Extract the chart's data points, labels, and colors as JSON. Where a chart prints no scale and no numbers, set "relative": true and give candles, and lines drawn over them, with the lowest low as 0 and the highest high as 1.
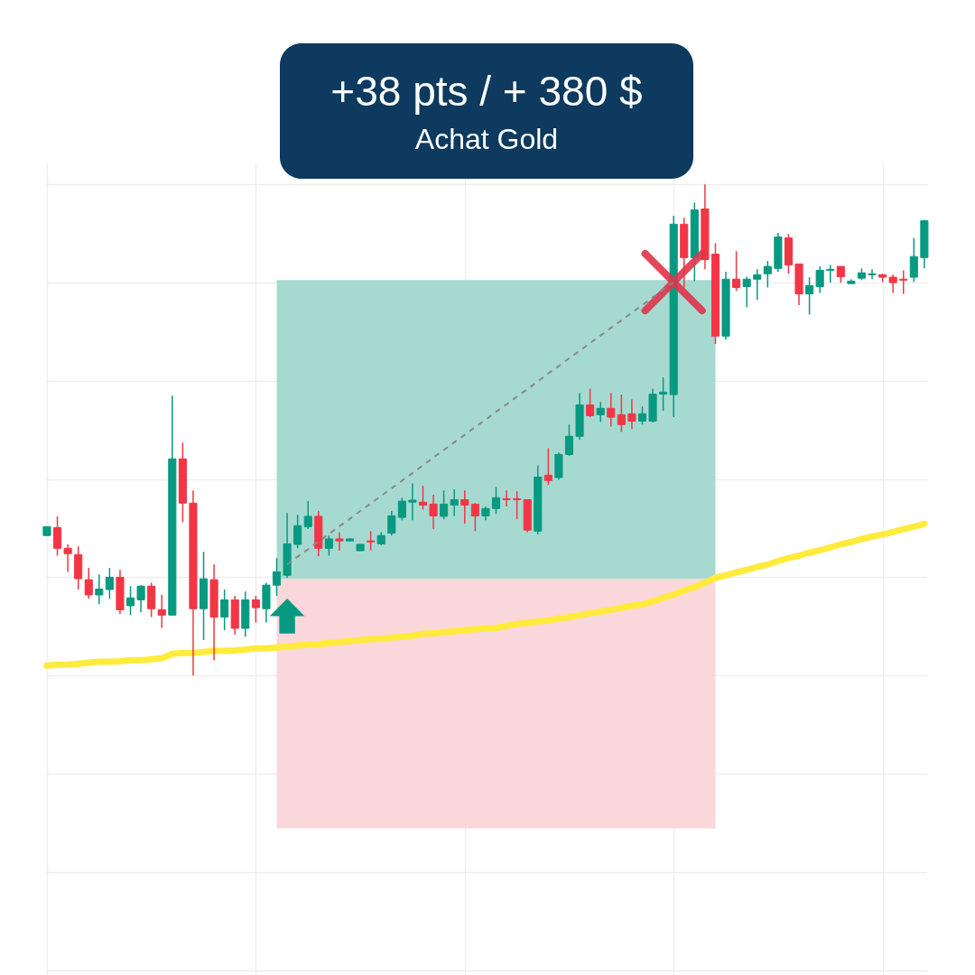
{
  "chart_data": {
    "type": "candlestick",
    "title": "+38 pts / + 380 $",
    "subtitle": "Achat Gold",
    "relative": true,
    "grid": true,
    "categories": [
      null,
      null,
      null,
      null,
      null,
      null,
      null,
      null,
      null,
      null,
      null,
      null,
      null,
      null,
      null,
      null,
      null,
      null,
      null,
      null,
      null,
      null,
      null,
      null,
      null,
      null,
      null,
      null,
      null,
      null,
      null,
      null,
      null,
      null,
      null,
      null,
      null,
      null,
      null,
      null,
      null,
      null,
      null,
      null,
      null,
      null,
      null,
      null,
      null,
      null,
      null,
      null,
      null,
      null,
      null,
      null,
      null,
      null,
      null,
      null,
      null,
      null,
      null,
      null,
      null,
      null,
      null,
      null,
      null,
      null,
      null,
      null,
      null,
      null,
      null,
      null,
      null,
      null,
      null,
      null,
      null,
      null,
      null,
      null,
      null
    ],
    "colors": [
      "#089981",
      "#f23645",
      "#f23645",
      "#f23645",
      "#f23645",
      "#089981",
      "#089981",
      "#f23645",
      "#089981",
      "#089981",
      "#f23645",
      "#f23645",
      "#089981",
      "#f23645",
      "#f23645",
      "#089981",
      "#f23645",
      "#089981",
      "#f23645",
      "#089981",
      "#f23645",
      "#089981",
      "#089981",
      "#089981",
      "#089981",
      "#089981",
      "#f23645",
      "#089981",
      "#f23645",
      "#089981",
      "#089981",
      "#f23645",
      "#089981",
      "#089981",
      "#089981",
      "#089981",
      "#f23645",
      "#f23645",
      "#089981",
      "#089981",
      "#f23645",
      "#f23645",
      "#089981",
      "#089981",
      "#f23645",
      "#f23645",
      "#f23645",
      "#089981",
      "#f23645",
      "#089981",
      "#089981",
      "#089981",
      "#f23645",
      "#089981",
      "#f23645",
      "#f23645",
      "#f23645",
      "#089981",
      "#089981",
      "#089981",
      "#089981",
      "#f23645",
      "#089981",
      "#f23645",
      "#f23645",
      "#089981",
      "#f23645",
      "#089981",
      "#089981",
      "#089981",
      "#089981",
      "#f23645",
      "#f23645",
      "#089981",
      "#089981",
      "#089981",
      "#f23645",
      "#089981",
      "#089981",
      "#089981",
      "#f23645",
      "#f23645",
      "#f23645",
      "#089981",
      "#089981"
    ],
    "ohlc": [
      [
        0.285,
        0.303,
        0.285,
        0.303
      ],
      [
        0.301,
        0.324,
        0.244,
        0.259
      ],
      [
        0.259,
        0.267,
        0.211,
        0.248
      ],
      [
        0.246,
        0.263,
        0.175,
        0.197
      ],
      [
        0.195,
        0.219,
        0.156,
        0.164
      ],
      [
        0.164,
        0.206,
        0.145,
        0.176
      ],
      [
        0.175,
        0.219,
        0.156,
        0.2
      ],
      [
        0.2,
        0.215,
        0.125,
        0.134
      ],
      [
        0.142,
        0.182,
        0.123,
        0.158
      ],
      [
        0.154,
        0.184,
        0.129,
        0.182
      ],
      [
        0.182,
        0.189,
        0.119,
        0.136
      ],
      [
        0.134,
        0.164,
        0.097,
        0.123
      ],
      [
        0.123,
        0.57,
        0.123,
        0.441
      ],
      [
        0.441,
        0.474,
        0.312,
        0.351
      ],
      [
        0.351,
        0.377,
        0,
        0.136
      ],
      [
        0.136,
        0.252,
        0.072,
        0.197
      ],
      [
        0.195,
        0.226,
        0.031,
        0.119
      ],
      [
        0.119,
        0.175,
        0.092,
        0.154
      ],
      [
        0.154,
        0.162,
        0.083,
        0.096
      ],
      [
        0.096,
        0.171,
        0.079,
        0.154
      ],
      [
        0.154,
        0.162,
        0.108,
        0.138
      ],
      [
        0.136,
        0.189,
        0.108,
        0.184
      ],
      [
        0.184,
        0.239,
        0.162,
        0.211
      ],
      [
        0.204,
        0.331,
        0.199,
        0.268
      ],
      [
        0.267,
        0.327,
        0.259,
        0.305
      ],
      [
        0.303,
        0.355,
        0.298,
        0.324
      ],
      [
        0.324,
        0.335,
        0.243,
        0.259
      ],
      [
        0.259,
        0.285,
        0.244,
        0.278
      ],
      [
        0.278,
        0.292,
        0.254,
        0.274
      ],
      [
        0.274,
        0.279,
        0.274,
        0.278
      ],
      [
        0.254,
        0.267,
        0.254,
        0.267
      ],
      [
        0.274,
        0.294,
        0.255,
        0.272
      ],
      [
        0.268,
        0.292,
        0.265,
        0.285
      ],
      [
        0.29,
        0.335,
        0.285,
        0.325
      ],
      [
        0.322,
        0.362,
        0.316,
        0.355
      ],
      [
        0.353,
        0.391,
        0.316,
        0.357
      ],
      [
        0.353,
        0.386,
        0.338,
        0.347
      ],
      [
        0.349,
        0.368,
        0.298,
        0.325
      ],
      [
        0.324,
        0.377,
        0.318,
        0.349
      ],
      [
        0.347,
        0.379,
        0.325,
        0.358
      ],
      [
        0.358,
        0.377,
        0.309,
        0.347
      ],
      [
        0.349,
        0.351,
        0.294,
        0.325
      ],
      [
        0.325,
        0.344,
        0.316,
        0.34
      ],
      [
        0.34,
        0.384,
        0.329,
        0.362
      ],
      [
        0.36,
        0.377,
        0.344,
        0.358
      ],
      [
        0.36,
        0.375,
        0.318,
        0.358
      ],
      [
        0.358,
        0.358,
        0.292,
        0.296
      ],
      [
        0.294,
        0.428,
        0.287,
        0.404
      ],
      [
        0.408,
        0.463,
        0.388,
        0.397
      ],
      [
        0.403,
        0.454,
        0.399,
        0.45
      ],
      [
        0.45,
        0.511,
        0.447,
        0.487
      ],
      [
        0.487,
        0.575,
        0.48,
        0.551
      ],
      [
        0.551,
        0.584,
        0.526,
        0.529
      ],
      [
        0.531,
        0.557,
        0.516,
        0.544
      ],
      [
        0.544,
        0.575,
        0.507,
        0.526
      ],
      [
        0.531,
        0.572,
        0.496,
        0.511
      ],
      [
        0.533,
        0.562,
        0.502,
        0.518
      ],
      [
        0.518,
        0.548,
        0.511,
        0.533
      ],
      [
        0.518,
        0.584,
        0.515,
        0.573
      ],
      [
        0.573,
        0.607,
        0.539,
        0.577
      ],
      [
        0.572,
        0.936,
        0.526,
        0.919
      ],
      [
        0.919,
        0.932,
        0.79,
        0.851
      ],
      [
        0.851,
        0.963,
        0.803,
        0.948
      ],
      [
        0.95,
        1,
        0.827,
        0.847
      ],
      [
        0.858,
        0.88,
        0.675,
        0.691
      ],
      [
        0.691,
        0.822,
        0.684,
        0.807
      ],
      [
        0.807,
        0.864,
        0.783,
        0.79
      ],
      [
        0.792,
        0.812,
        0.75,
        0.807
      ],
      [
        0.807,
        0.827,
        0.765,
        0.816
      ],
      [
        0.818,
        0.844,
        0.79,
        0.833
      ],
      [
        0.829,
        0.901,
        0.822,
        0.893
      ],
      [
        0.891,
        0.899,
        0.818,
        0.836
      ],
      [
        0.838,
        0.838,
        0.754,
        0.777
      ],
      [
        0.777,
        0.811,
        0.735,
        0.794
      ],
      [
        0.792,
        0.833,
        0.779,
        0.825
      ],
      [
        0.825,
        0.836,
        0.8,
        0.827
      ],
      [
        0.833,
        0.833,
        0.8,
        0.812
      ],
      [
        0.798,
        0.807,
        0.798,
        0.803
      ],
      [
        0.809,
        0.829,
        0.805,
        0.82
      ],
      [
        0.816,
        0.827,
        0.807,
        0.818
      ],
      [
        0.816,
        0.818,
        0.801,
        0.811
      ],
      [
        0.811,
        0.816,
        0.779,
        0.8
      ],
      [
        0.807,
        0.825,
        0.777,
        0.805
      ],
      [
        0.811,
        0.891,
        0.801,
        0.853
      ],
      [
        0.851,
        0.928,
        0.829,
        0.926
      ]
    ],
    "bands": [
      {
        "axis": "y",
        "from": 0.197,
        "to": 0.805,
        "color": "#a6dad1"
      },
      {
        "axis": "y",
        "from": -0.311,
        "to": 0.197,
        "color": "#fad7da"
      }
    ],
    "series": [
      {
        "type": "line",
        "color": "#ffeb3b",
        "line_style": "solid",
        "values": [
          0.02,
          0.022,
          0.022,
          0.024,
          0.026,
          0.028,
          0.028,
          0.029,
          0.031,
          0.031,
          0.033,
          0.035,
          0.044,
          0.046,
          0.046,
          0.048,
          0.05,
          0.05,
          0.051,
          0.053,
          0.055,
          0.055,
          0.057,
          0.059,
          0.061,
          0.063,
          0.064,
          0.066,
          0.068,
          0.07,
          0.072,
          0.074,
          0.075,
          0.077,
          0.079,
          0.081,
          0.085,
          0.086,
          0.088,
          0.09,
          0.092,
          0.094,
          0.096,
          0.097,
          0.101,
          0.105,
          0.107,
          0.11,
          0.112,
          0.116,
          0.119,
          0.123,
          0.127,
          0.13,
          0.134,
          0.138,
          0.142,
          0.145,
          0.151,
          0.158,
          0.165,
          0.173,
          0.18,
          0.189,
          0.199,
          0.204,
          0.21,
          0.215,
          0.221,
          0.226,
          0.233,
          0.239,
          0.244,
          0.25,
          0.255,
          0.261,
          0.267,
          0.272,
          0.278,
          0.283,
          0.287,
          0.292,
          0.298,
          0.303,
          0.309
        ]
      },
      {
        "type": "line",
        "color": "#888888",
        "line_style": "dashed",
        "values": [
          null,
          null,
          null,
          null,
          null,
          null,
          null,
          null,
          null,
          null,
          null,
          null,
          null,
          null,
          null,
          null,
          null,
          null,
          null,
          null,
          null,
          null,
          null,
          0.226,
          0.242,
          0.257,
          0.273,
          0.288,
          0.304,
          0.319,
          0.335,
          0.35,
          0.366,
          0.381,
          0.397,
          0.412,
          0.428,
          0.444,
          0.459,
          0.475,
          0.49,
          0.506,
          0.521,
          0.537,
          0.552,
          0.568,
          0.583,
          0.599,
          0.615,
          0.63,
          0.646,
          0.661,
          0.677,
          0.692,
          0.708,
          0.723,
          0.739,
          0.754,
          0.77,
          0.786,
          0.801,
          null,
          null,
          null,
          null,
          null,
          null,
          null,
          null,
          null,
          null,
          null,
          null,
          null,
          null,
          null,
          null,
          null,
          null,
          null,
          null,
          null,
          null,
          null,
          null
        ]
      }
    ]
  }
}
